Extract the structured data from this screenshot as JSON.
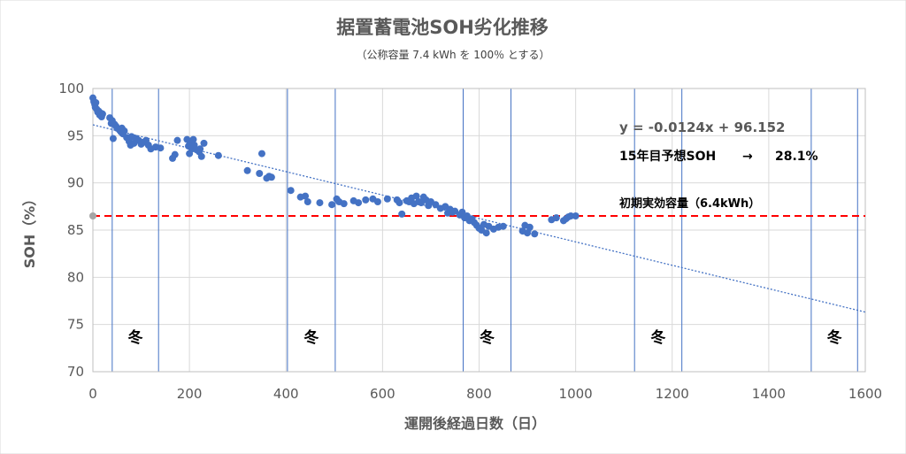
{
  "chart_data": {
    "type": "scatter",
    "title": "据置蓄電池SOH劣化推移",
    "subtitle": "（公称容量 7.4 kWh を 100％ とする）",
    "xlabel": "運開後経過日数（日）",
    "ylabel": "SOH（%）",
    "xlim": [
      0,
      1600
    ],
    "ylim": [
      70,
      100
    ],
    "x_ticks": [
      "0",
      "200",
      "400",
      "600",
      "800",
      "1000",
      "1200",
      "1400",
      "1600"
    ],
    "y_ticks": [
      "70",
      "75",
      "80",
      "85",
      "90",
      "95",
      "100"
    ],
    "grid": true,
    "colors": {
      "points": "#4472C4",
      "trend": "#4472C4",
      "reference": "#FF0000",
      "winter_lines": "#4472C4"
    },
    "series": [
      {
        "name": "SOH",
        "x": [
          0,
          2,
          4,
          5,
          6,
          8,
          10,
          12,
          14,
          16,
          18,
          20,
          35,
          38,
          40,
          42,
          45,
          48,
          50,
          55,
          58,
          60,
          62,
          65,
          70,
          75,
          78,
          80,
          85,
          90,
          95,
          100,
          105,
          110,
          115,
          120,
          130,
          140,
          165,
          170,
          175,
          195,
          198,
          200,
          202,
          205,
          208,
          210,
          215,
          220,
          222,
          225,
          230,
          260,
          320,
          345,
          350,
          360,
          365,
          370,
          410,
          430,
          440,
          445,
          470,
          495,
          505,
          510,
          520,
          540,
          550,
          565,
          580,
          590,
          610,
          630,
          635,
          640,
          650,
          655,
          660,
          665,
          670,
          675,
          680,
          685,
          690,
          695,
          700,
          710,
          720,
          730,
          735,
          740,
          745,
          750,
          760,
          765,
          770,
          775,
          780,
          785,
          790,
          795,
          800,
          805,
          810,
          815,
          820,
          830,
          840,
          850,
          890,
          895,
          900,
          905,
          915,
          950,
          960,
          975,
          980,
          985,
          990,
          1000
        ],
        "y": [
          99.0,
          98.6,
          98.3,
          98.0,
          98.5,
          97.8,
          97.5,
          97.6,
          97.2,
          97.4,
          97.0,
          97.3,
          96.9,
          96.3,
          96.6,
          94.7,
          96.2,
          96.0,
          95.8,
          95.6,
          95.4,
          95.8,
          95.2,
          95.5,
          94.8,
          94.4,
          94.0,
          94.9,
          94.2,
          94.7,
          94.5,
          94.1,
          94.3,
          94.5,
          94.0,
          93.6,
          93.8,
          93.7,
          92.6,
          93.0,
          94.5,
          94.6,
          93.9,
          93.1,
          94.2,
          93.6,
          94.6,
          94.0,
          93.5,
          93.3,
          93.6,
          92.8,
          94.2,
          92.9,
          91.3,
          91.0,
          93.1,
          90.5,
          90.7,
          90.6,
          89.2,
          88.5,
          88.6,
          88.0,
          87.9,
          87.7,
          88.3,
          88.0,
          87.8,
          88.1,
          87.9,
          88.2,
          88.3,
          88.0,
          88.3,
          88.2,
          87.9,
          86.7,
          88.1,
          88.0,
          88.4,
          87.8,
          88.6,
          88.0,
          87.9,
          88.5,
          88.2,
          87.6,
          88.0,
          87.7,
          87.3,
          87.5,
          86.8,
          87.2,
          86.9,
          87.0,
          86.6,
          86.9,
          86.3,
          86.5,
          86.0,
          86.2,
          85.8,
          85.5,
          85.2,
          85.0,
          85.6,
          84.7,
          85.4,
          85.1,
          85.3,
          85.4,
          84.9,
          85.5,
          84.7,
          85.3,
          84.6,
          86.1,
          86.3,
          86.0,
          86.2,
          86.4,
          86.5,
          86.5
        ]
      }
    ],
    "highlight_point": {
      "x": 0,
      "y": 86.5,
      "color": "#A5A5A5"
    },
    "trendline": {
      "slope": -0.0124,
      "intercept": 96.152,
      "x_range": [
        0,
        1600
      ]
    },
    "reference_line": {
      "y": 86.5
    },
    "winter_periods": [
      {
        "label": "冬",
        "start": 40,
        "end": 136
      },
      {
        "label": "冬",
        "start": 403,
        "end": 502
      },
      {
        "label": "冬",
        "start": 767,
        "end": 866
      },
      {
        "label": "冬",
        "start": 1122,
        "end": 1220
      },
      {
        "label": "冬",
        "start": 1488,
        "end": 1584
      }
    ],
    "annotations": {
      "equation": "y = -0.0124x + 96.152",
      "forecast_label": "15年目予想SOH",
      "forecast_arrow": "→",
      "forecast_value": "28.1%",
      "reference_label": "初期実効容量（6.4kWh）"
    }
  }
}
